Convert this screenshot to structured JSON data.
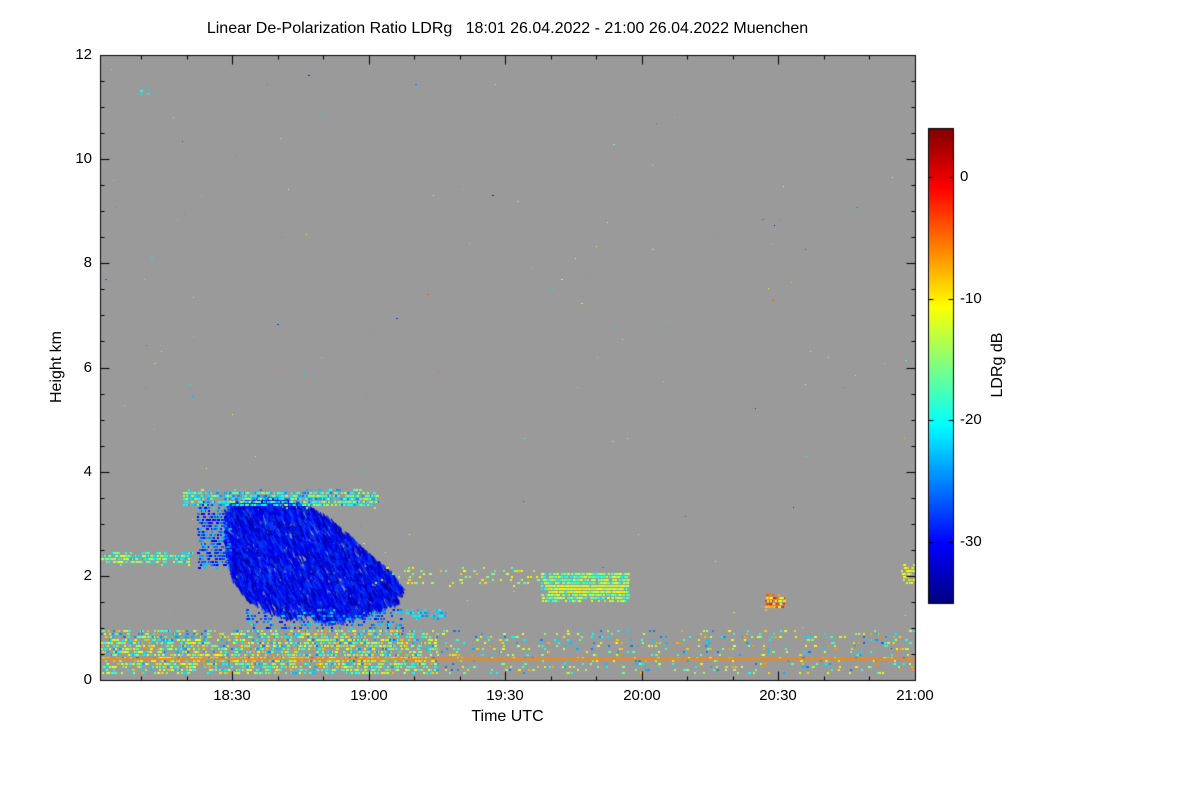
{
  "chart_data": {
    "type": "heatmap",
    "title": "Linear De-Polarization Ratio LDRg   18:01 26.04.2022 - 21:00 26.04.2022 Muenchen",
    "xlabel": "Time UTC",
    "ylabel": "Height km",
    "site": "Muenchen",
    "time_start": "18:01 26.04.2022",
    "time_end": "21:00 26.04.2022",
    "xlim_hours": [
      18.0167,
      21.0
    ],
    "ylim": [
      0,
      12
    ],
    "x_ticks": [
      {
        "hour": 18.5,
        "label": "18:30"
      },
      {
        "hour": 19.0,
        "label": "19:00"
      },
      {
        "hour": 19.5,
        "label": "19:30"
      },
      {
        "hour": 20.0,
        "label": "20:00"
      },
      {
        "hour": 20.5,
        "label": "20:30"
      },
      {
        "hour": 21.0,
        "label": "21:00"
      }
    ],
    "y_ticks": [
      0,
      2,
      4,
      6,
      8,
      10,
      12
    ],
    "grid": false,
    "no_data_color": "#9A9A9A",
    "colorbar": {
      "label": "LDRg dB",
      "ticks": [
        0,
        -10,
        -20,
        -30
      ],
      "vmin": -35,
      "vmax": 4,
      "colormap": "jet",
      "position": "right"
    },
    "features": [
      {
        "name": "main-cloud",
        "kind": "polygon",
        "count": 6000,
        "vmin": -34,
        "vmax": -27,
        "points": [
          [
            18.47,
            2.6
          ],
          [
            18.47,
            3.3
          ],
          [
            18.5,
            3.45
          ],
          [
            18.58,
            3.5
          ],
          [
            18.68,
            3.52
          ],
          [
            18.76,
            3.4
          ],
          [
            18.84,
            3.2
          ],
          [
            18.92,
            2.85
          ],
          [
            19.0,
            2.45
          ],
          [
            19.08,
            2.1
          ],
          [
            19.12,
            1.8
          ],
          [
            19.1,
            1.55
          ],
          [
            19.02,
            1.38
          ],
          [
            18.93,
            1.22
          ],
          [
            18.85,
            1.15
          ],
          [
            18.77,
            1.3
          ],
          [
            18.7,
            1.24
          ],
          [
            18.62,
            1.4
          ],
          [
            18.55,
            1.6
          ],
          [
            18.5,
            1.95
          ],
          [
            18.48,
            2.3
          ]
        ]
      },
      {
        "name": "cloud-left-fragments",
        "kind": "speckle",
        "t0": 18.37,
        "t1": 18.49,
        "h0": 2.15,
        "h1": 3.4,
        "count": 340,
        "vmin": -31,
        "vmax": -22,
        "size": 2
      },
      {
        "name": "cloud-top-band",
        "kind": "speckle",
        "t0": 18.32,
        "t1": 19.03,
        "h0": 3.32,
        "h1": 3.62,
        "count": 650,
        "vmin": -26,
        "vmax": -13,
        "size": 2
      },
      {
        "name": "left-band-2km",
        "kind": "speckle",
        "t0": 18.02,
        "t1": 18.35,
        "h0": 2.22,
        "h1": 2.42,
        "count": 220,
        "vmin": -24,
        "vmax": -11,
        "size": 2
      },
      {
        "name": "below-cloud-streaks",
        "kind": "speckle",
        "t0": 18.55,
        "t1": 19.12,
        "h0": 0.98,
        "h1": 1.35,
        "count": 220,
        "vmin": -30,
        "vmax": -21,
        "size": 2
      },
      {
        "name": "cyan-dashes",
        "kind": "speckle",
        "t0": 19.13,
        "t1": 19.28,
        "h0": 1.18,
        "h1": 1.32,
        "count": 50,
        "vmin": -25,
        "vmax": -19,
        "size": 2
      },
      {
        "name": "mid-cloud",
        "kind": "speckle",
        "t0": 19.63,
        "t1": 19.95,
        "h0": 1.52,
        "h1": 2.05,
        "count": 750,
        "vmin": -22,
        "vmax": -10,
        "size": 2
      },
      {
        "name": "mid-cloud-core",
        "kind": "speckle",
        "t0": 19.65,
        "t1": 19.93,
        "h0": 1.68,
        "h1": 1.82,
        "count": 220,
        "vmin": -15,
        "vmax": -9,
        "size": 2
      },
      {
        "name": "pre-midcloud-specks",
        "kind": "speckle",
        "t0": 19.02,
        "t1": 19.62,
        "h0": 1.8,
        "h1": 2.15,
        "count": 70,
        "vmin": -18,
        "vmax": -8,
        "size": 2
      },
      {
        "name": "orange-cluster",
        "kind": "speckle",
        "t0": 20.45,
        "t1": 20.52,
        "h0": 1.35,
        "h1": 1.62,
        "count": 70,
        "vmin": -12,
        "vmax": -1,
        "size": 2
      },
      {
        "name": "ground-dense",
        "kind": "speckle",
        "t0": 18.02,
        "t1": 19.25,
        "h0": 0.28,
        "h1": 0.95,
        "count": 1600,
        "vmin": -26,
        "vmax": -6,
        "size": 2
      },
      {
        "name": "ground-low",
        "kind": "speckle",
        "t0": 18.02,
        "t1": 19.25,
        "h0": 0.1,
        "h1": 0.3,
        "count": 380,
        "vmin": -24,
        "vmax": -7,
        "size": 2
      },
      {
        "name": "ground-sparse",
        "kind": "speckle",
        "t0": 19.25,
        "t1": 21.0,
        "h0": 0.1,
        "h1": 0.95,
        "count": 480,
        "vmin": -26,
        "vmax": -6,
        "size": 2
      },
      {
        "name": "scatter-noise",
        "kind": "speckle",
        "t0": 18.02,
        "t1": 21.0,
        "h0": 0.2,
        "h1": 11.8,
        "count": 140,
        "vmin": -30,
        "vmax": -4,
        "size": 1
      },
      {
        "name": "right-edge-specks",
        "kind": "speckle",
        "t0": 20.95,
        "t1": 21.0,
        "h0": 1.82,
        "h1": 2.18,
        "count": 50,
        "vmin": -15,
        "vmax": -8,
        "size": 2
      },
      {
        "name": "high-dot",
        "kind": "speckle",
        "t0": 18.15,
        "t1": 18.19,
        "h0": 11.22,
        "h1": 11.38,
        "count": 4,
        "vmin": -23,
        "vmax": -18,
        "size": 2
      },
      {
        "name": "surface-line",
        "kind": "hline",
        "h": 0.4,
        "t0": 18.02,
        "t1": 21.0,
        "value": -6,
        "thickness": 2
      }
    ]
  }
}
